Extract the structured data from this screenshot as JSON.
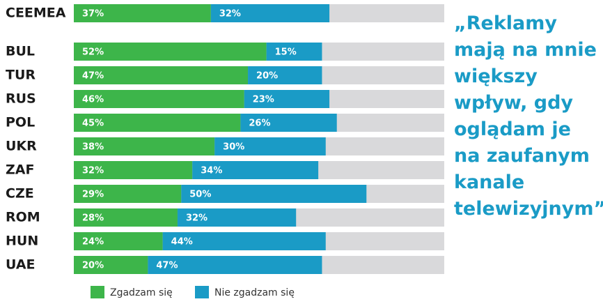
{
  "chart_data": {
    "type": "stacked-bar-horizontal",
    "categories": [
      "CEEMEA",
      "BUL",
      "TUR",
      "RUS",
      "POL",
      "UKR",
      "ZAF",
      "CZE",
      "ROM",
      "HUN",
      "UAE"
    ],
    "series": [
      {
        "name": "Zgadzam się",
        "color": "#3db54a",
        "values": [
          37,
          52,
          47,
          46,
          45,
          38,
          32,
          29,
          28,
          24,
          20
        ],
        "value_labels": [
          "37%",
          "52%",
          "47%",
          "46%",
          "45%",
          "38%",
          "32%",
          "29%",
          "28%",
          "24%",
          "20%"
        ]
      },
      {
        "name": "Nie zgadzam się",
        "color": "#1a9bc6",
        "values": [
          32,
          15,
          20,
          23,
          26,
          30,
          34,
          50,
          32,
          44,
          47
        ],
        "value_labels": [
          "32%",
          "15%",
          "20%",
          "23%",
          "26%",
          "30%",
          "34%",
          "50%",
          "32%",
          "44%",
          "47%"
        ]
      }
    ],
    "xlim": [
      0,
      100
    ],
    "track_color": "#d9d9db",
    "annotation": [
      "„Reklamy",
      "mają na mnie",
      "większy",
      "wpływ, gdy",
      "oglądam je",
      "na zaufanym",
      "kanale",
      "telewizyjnym”"
    ]
  }
}
